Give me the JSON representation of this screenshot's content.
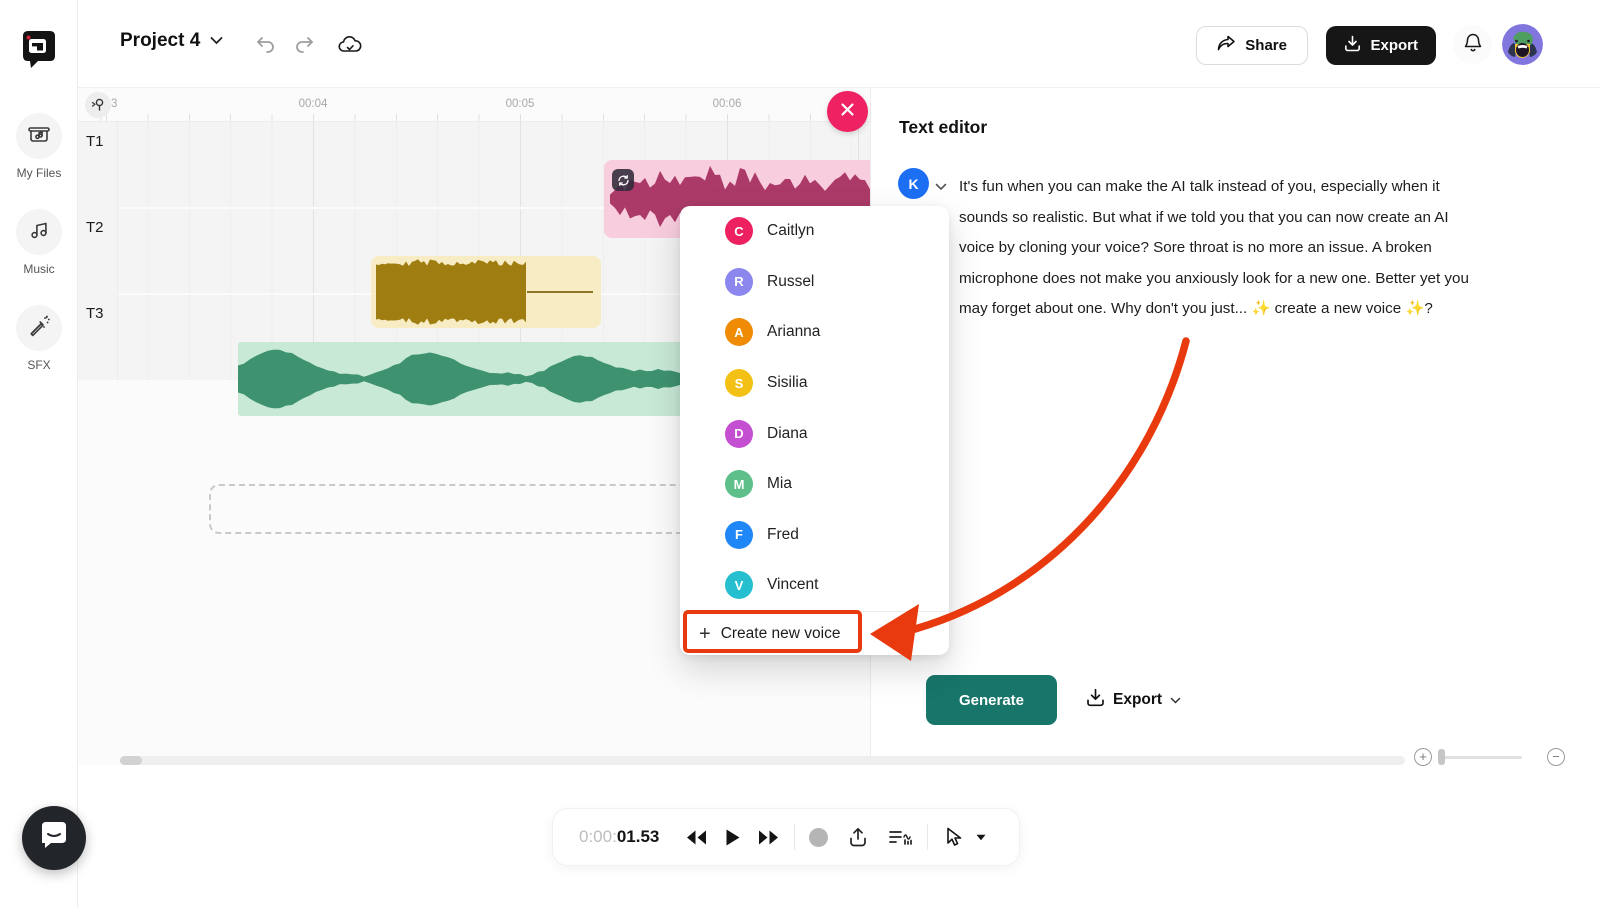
{
  "header": {
    "project_title": "Project 4",
    "share_label": "Share",
    "export_label": "Export"
  },
  "sidebar": {
    "items": [
      {
        "label": "My Files"
      },
      {
        "label": "Music"
      },
      {
        "label": "SFX"
      }
    ]
  },
  "timeline": {
    "ruler_labels": [
      "03",
      "00:04",
      "00:05",
      "00:06"
    ],
    "tracks": [
      {
        "label": "T1",
        "clip_color": "#f8cede",
        "wave_color": "#ac3a69"
      },
      {
        "label": "T2",
        "clip_color": "#f8ecc5",
        "wave_color": "#a07d10"
      },
      {
        "label": "T3",
        "clip_color": "#c9e9d7",
        "wave_color": "#3e9270"
      }
    ]
  },
  "voice_menu": {
    "items": [
      {
        "name": "Caitlyn",
        "initial": "C",
        "color": "#ee2160"
      },
      {
        "name": "Russel",
        "initial": "R",
        "color": "#8b87ef"
      },
      {
        "name": "Arianna",
        "initial": "A",
        "color": "#ef8b05"
      },
      {
        "name": "Sisilia",
        "initial": "S",
        "color": "#f3c116"
      },
      {
        "name": "Diana",
        "initial": "D",
        "color": "#c44fd0"
      },
      {
        "name": "Mia",
        "initial": "M",
        "color": "#5fbf8b"
      },
      {
        "name": "Fred",
        "initial": "F",
        "color": "#1f87f6"
      },
      {
        "name": "Vincent",
        "initial": "V",
        "color": "#26bfcf"
      }
    ],
    "create_label": "Create new voice"
  },
  "text_editor": {
    "title": "Text editor",
    "speaker_initial": "K",
    "speaker_color": "#1c6ff3",
    "paragraph": "It's fun when you can make the AI talk instead of you, especially when it sounds so realistic. But what if we told you that you can now create an AI voice by cloning your voice? Sore throat is no more an issue. A broken microphone does not make you anxiously look for a new one. Better yet you may forget about one. Why don't you just... ✨ create a new voice ✨?",
    "generate_label": "Generate",
    "export_label": "Export"
  },
  "transport": {
    "time_prefix": "0:00:",
    "time_value": "01.53"
  },
  "colors": {
    "accent_teal": "#17756a",
    "annotation_red": "#e83a0e",
    "close_pink": "#ee2162",
    "export_black": "#161616"
  }
}
